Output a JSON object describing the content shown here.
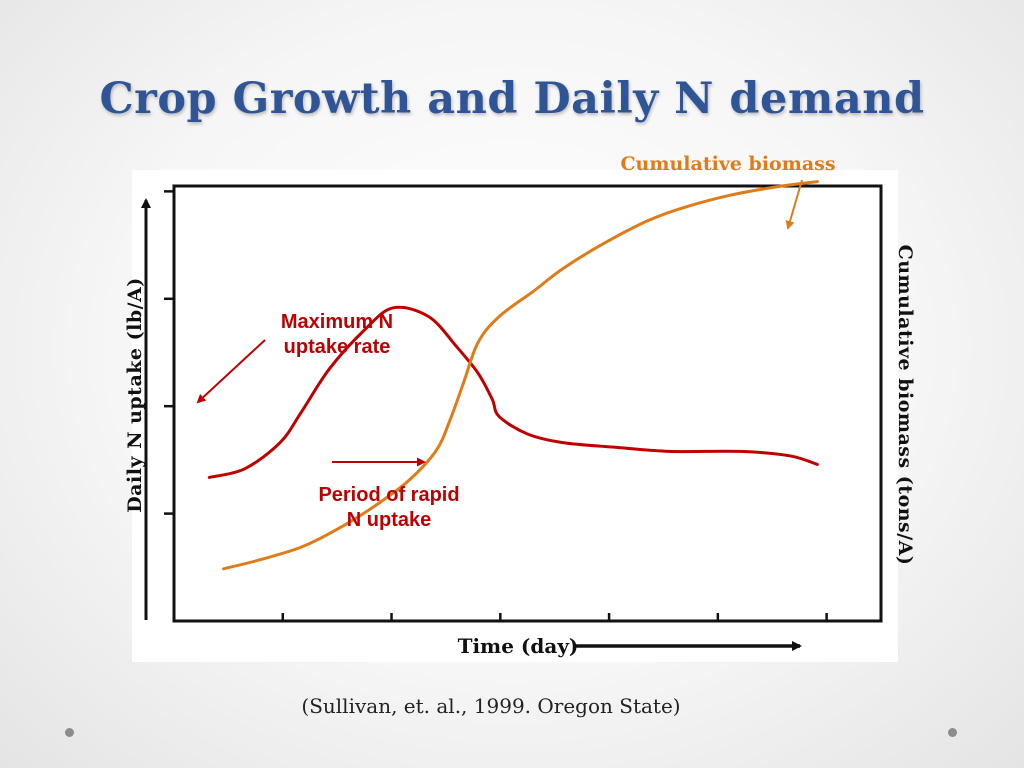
{
  "slide": {
    "title": "Crop Growth and Daily N demand",
    "citation": "(Sullivan, et. al., 1999. Oregon State)"
  },
  "annotations": {
    "cumulative_biomass": "Cumulative biomass",
    "max_uptake_line1": "Maximum N",
    "max_uptake_line2": "uptake rate",
    "rapid_uptake_line1": "Period of rapid",
    "rapid_uptake_line2": "N uptake"
  },
  "colors": {
    "title": "#2f5597",
    "biomass": "#e07b1a",
    "uptake": "#c00000",
    "axis": "#111111"
  },
  "chart_data": {
    "type": "line",
    "xlabel": "Time (day)",
    "ylabel": "Daily N uptake (lb/A)",
    "ylabel_right": "Cumulative biomass (tons/A)",
    "x_tick_count": 6,
    "y_tick_count": 4,
    "series": [
      {
        "axis": "left",
        "color": "#c00000",
        "points": [
          [
            0.05,
            0.33
          ],
          [
            0.1,
            0.35
          ],
          [
            0.15,
            0.41
          ],
          [
            0.18,
            0.48
          ],
          [
            0.22,
            0.58
          ],
          [
            0.27,
            0.67
          ],
          [
            0.31,
            0.72
          ],
          [
            0.36,
            0.7
          ],
          [
            0.4,
            0.63
          ],
          [
            0.43,
            0.57
          ],
          [
            0.45,
            0.51
          ],
          [
            0.46,
            0.47
          ],
          [
            0.5,
            0.43
          ],
          [
            0.55,
            0.41
          ],
          [
            0.62,
            0.4
          ],
          [
            0.7,
            0.39
          ],
          [
            0.8,
            0.39
          ],
          [
            0.87,
            0.38
          ],
          [
            0.91,
            0.36
          ]
        ]
      },
      {
        "axis": "right",
        "color": "#e07b1a",
        "points": [
          [
            0.07,
            0.12
          ],
          [
            0.12,
            0.14
          ],
          [
            0.18,
            0.17
          ],
          [
            0.23,
            0.21
          ],
          [
            0.28,
            0.26
          ],
          [
            0.33,
            0.32
          ],
          [
            0.37,
            0.39
          ],
          [
            0.39,
            0.46
          ],
          [
            0.41,
            0.55
          ],
          [
            0.43,
            0.64
          ],
          [
            0.46,
            0.7
          ],
          [
            0.51,
            0.76
          ],
          [
            0.55,
            0.81
          ],
          [
            0.61,
            0.87
          ],
          [
            0.67,
            0.92
          ],
          [
            0.72,
            0.95
          ],
          [
            0.79,
            0.98
          ],
          [
            0.86,
            1.0
          ],
          [
            0.91,
            1.01
          ]
        ]
      }
    ]
  }
}
